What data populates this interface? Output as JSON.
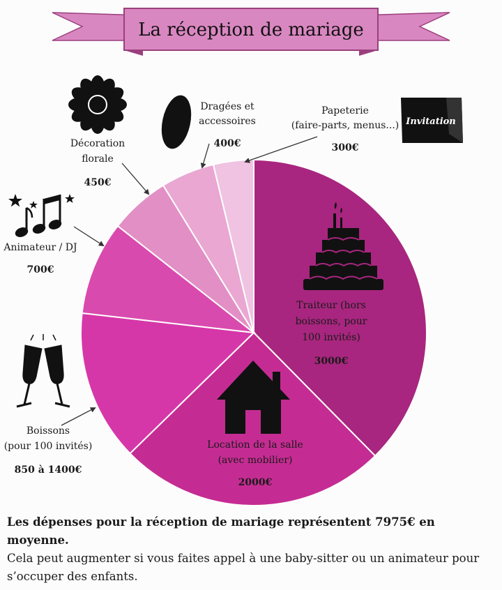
{
  "title": "La réception de mariage",
  "chart_data": {
    "type": "pie",
    "title": "La réception de mariage",
    "slices": [
      {
        "label": [
          "Traiteur (hors",
          "boissons, pour",
          "100 invités)"
        ],
        "value_text": "3000€",
        "value": 3000,
        "color": "#a8267f"
      },
      {
        "label": [
          "Location de la salle",
          "(avec mobilier)"
        ],
        "value_text": "2000€",
        "value": 2000,
        "color": "#c52c93"
      },
      {
        "label": [
          "Boissons",
          "(pour 100 invités)"
        ],
        "value_text": "850 à 1400€",
        "value": 1125,
        "color": "#d637a8"
      },
      {
        "label": [
          "Animateur / DJ"
        ],
        "value_text": "700€",
        "value": 700,
        "color": "#d94aae"
      },
      {
        "label": [
          "Décoration",
          "florale"
        ],
        "value_text": "450€",
        "value": 450,
        "color": "#e28fc6"
      },
      {
        "label": [
          "Dragées et",
          "accessoires"
        ],
        "value_text": "400€",
        "value": 400,
        "color": "#e9a7d2"
      },
      {
        "label": [
          "Papeterie",
          "(faire-parts, menus...)"
        ],
        "value_text": "300€",
        "value": 300,
        "color": "#efc3e1"
      }
    ]
  },
  "icons": {
    "papeterie": "invitation-card-icon",
    "invitation_text": "Invitation",
    "traiteur": "wedding-cake-icon",
    "salle": "house-icon",
    "boissons": "champagne-glasses-icon",
    "animateur": "music-notes-icon",
    "decoration": "flower-icon",
    "dragees": "dragee-icon"
  },
  "summary": {
    "bold": "Les dépenses pour la réception de mariage représentent 7975€ en moyenne.",
    "text": "Cela peut augmenter si vous faites appel à une baby-sitter ou un animateur pour s’occuper des enfants."
  }
}
